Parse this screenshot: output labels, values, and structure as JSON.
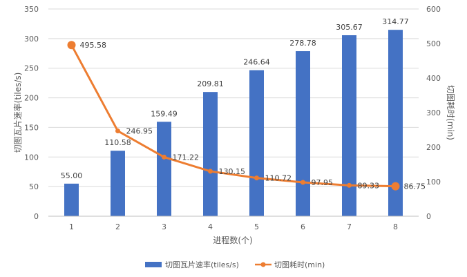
{
  "chart_data": {
    "type": "bar",
    "categories": [
      "1",
      "2",
      "3",
      "4",
      "5",
      "6",
      "7",
      "8"
    ],
    "series": [
      {
        "name": "切图瓦片速率(tiles/s)",
        "type": "bar",
        "axis": "left",
        "color": "#4472C4",
        "values": [
          55.0,
          110.58,
          159.49,
          209.81,
          246.64,
          278.78,
          305.67,
          314.77
        ],
        "labels": [
          "55.00",
          "110.58",
          "159.49",
          "209.81",
          "246.64",
          "278.78",
          "305.67",
          "314.77"
        ]
      },
      {
        "name": "切图耗时(min)",
        "type": "line",
        "axis": "right",
        "color": "#ED7D31",
        "values": [
          495.58,
          246.95,
          171.22,
          130.15,
          110.72,
          97.95,
          89.33,
          86.75
        ],
        "labels": [
          "495.58",
          "246.95",
          "171.22",
          "130.15",
          "110.72",
          "97.95",
          "89.33",
          "86.75"
        ]
      }
    ],
    "xlabel": "进程数(个)",
    "ylabel": "切图瓦片速率(tiles/s)",
    "y2label": "切图耗时(min)",
    "ylim": [
      0,
      350
    ],
    "y2lim": [
      0,
      600
    ],
    "yticks": [
      "0",
      "50",
      "100",
      "150",
      "200",
      "250",
      "300",
      "350"
    ],
    "y2ticks": [
      "0",
      "100",
      "200",
      "300",
      "400",
      "500",
      "600"
    ],
    "grid": true,
    "legend_position": "bottom"
  }
}
